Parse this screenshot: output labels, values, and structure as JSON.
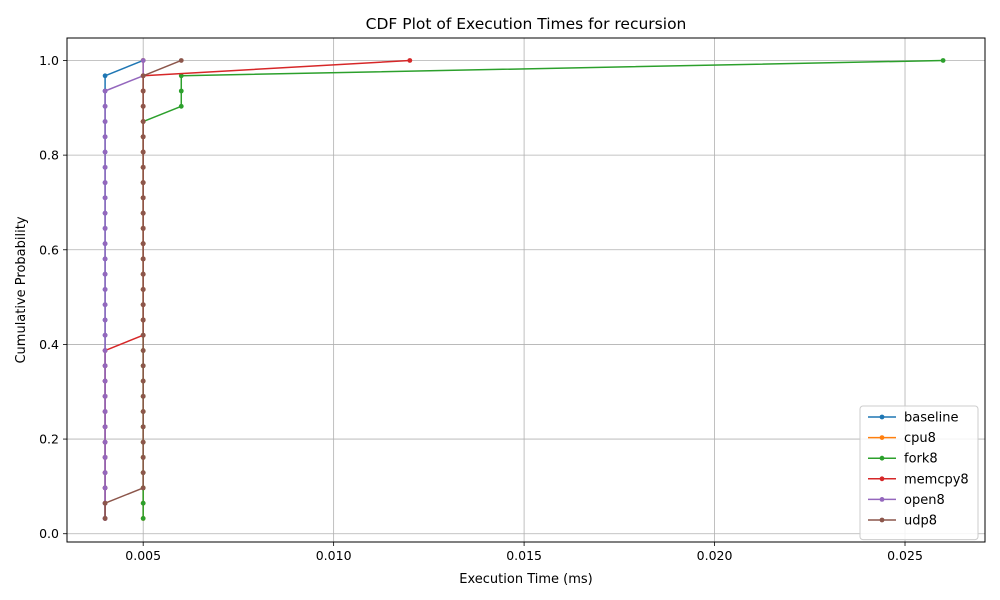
{
  "chart_data": {
    "type": "line",
    "title": "CDF Plot of Execution Times for recursion",
    "xlabel": "Execution Time (ms)",
    "ylabel": "Cumulative Probability",
    "xlim": [
      0.003,
      0.0271
    ],
    "ylim": [
      -0.0175,
      1.0475
    ],
    "x_ticks": [
      0.005,
      0.01,
      0.015,
      0.02,
      0.025
    ],
    "x_tick_labels": [
      "0.005",
      "0.010",
      "0.015",
      "0.020",
      "0.025"
    ],
    "y_ticks": [
      0.0,
      0.2,
      0.4,
      0.6,
      0.8,
      1.0
    ],
    "y_tick_labels": [
      "0.0",
      "0.2",
      "0.4",
      "0.6",
      "0.8",
      "1.0"
    ],
    "grid": true,
    "legend_position": "bottom-right",
    "series": [
      {
        "name": "baseline",
        "color": "#1f77b4",
        "points": [
          [
            0.004,
            0.0323
          ],
          [
            0.004,
            0.0645
          ],
          [
            0.004,
            0.0968
          ],
          [
            0.004,
            0.129
          ],
          [
            0.004,
            0.1613
          ],
          [
            0.004,
            0.1935
          ],
          [
            0.004,
            0.2258
          ],
          [
            0.004,
            0.2581
          ],
          [
            0.004,
            0.2903
          ],
          [
            0.004,
            0.3226
          ],
          [
            0.004,
            0.3548
          ],
          [
            0.004,
            0.3871
          ],
          [
            0.004,
            0.4194
          ],
          [
            0.004,
            0.4516
          ],
          [
            0.004,
            0.4839
          ],
          [
            0.004,
            0.5161
          ],
          [
            0.004,
            0.5484
          ],
          [
            0.004,
            0.5806
          ],
          [
            0.004,
            0.6129
          ],
          [
            0.004,
            0.6452
          ],
          [
            0.004,
            0.6774
          ],
          [
            0.004,
            0.7097
          ],
          [
            0.004,
            0.7419
          ],
          [
            0.004,
            0.7742
          ],
          [
            0.004,
            0.8065
          ],
          [
            0.004,
            0.8387
          ],
          [
            0.004,
            0.871
          ],
          [
            0.004,
            0.9032
          ],
          [
            0.004,
            0.9355
          ],
          [
            0.004,
            0.9677
          ],
          [
            0.005,
            1.0
          ]
        ]
      },
      {
        "name": "cpu8",
        "color": "#ff7f0e",
        "points": [
          [
            0.005,
            0.0323
          ],
          [
            0.005,
            0.0645
          ],
          [
            0.005,
            0.0968
          ],
          [
            0.005,
            0.129
          ],
          [
            0.005,
            0.1613
          ],
          [
            0.005,
            0.1935
          ],
          [
            0.005,
            0.2258
          ],
          [
            0.005,
            0.2581
          ],
          [
            0.005,
            0.2903
          ],
          [
            0.005,
            0.3226
          ],
          [
            0.005,
            0.3548
          ],
          [
            0.005,
            0.3871
          ],
          [
            0.005,
            0.4194
          ],
          [
            0.005,
            0.4516
          ],
          [
            0.005,
            0.4839
          ],
          [
            0.005,
            0.5161
          ],
          [
            0.005,
            0.5484
          ],
          [
            0.005,
            0.5806
          ],
          [
            0.005,
            0.6129
          ],
          [
            0.005,
            0.6452
          ],
          [
            0.005,
            0.6774
          ],
          [
            0.005,
            0.7097
          ],
          [
            0.005,
            0.7419
          ],
          [
            0.005,
            0.7742
          ],
          [
            0.005,
            0.8065
          ],
          [
            0.005,
            0.8387
          ],
          [
            0.005,
            0.871
          ],
          [
            0.005,
            0.9032
          ],
          [
            0.005,
            0.9355
          ],
          [
            0.005,
            0.9677
          ],
          [
            0.005,
            1.0
          ]
        ]
      },
      {
        "name": "fork8",
        "color": "#2ca02c",
        "points": [
          [
            0.005,
            0.0323
          ],
          [
            0.005,
            0.0645
          ],
          [
            0.005,
            0.0968
          ],
          [
            0.005,
            0.129
          ],
          [
            0.005,
            0.1613
          ],
          [
            0.005,
            0.1935
          ],
          [
            0.005,
            0.2258
          ],
          [
            0.005,
            0.2581
          ],
          [
            0.005,
            0.2903
          ],
          [
            0.005,
            0.3226
          ],
          [
            0.005,
            0.3548
          ],
          [
            0.005,
            0.3871
          ],
          [
            0.005,
            0.4194
          ],
          [
            0.005,
            0.4516
          ],
          [
            0.005,
            0.4839
          ],
          [
            0.005,
            0.5161
          ],
          [
            0.005,
            0.5484
          ],
          [
            0.005,
            0.5806
          ],
          [
            0.005,
            0.6129
          ],
          [
            0.005,
            0.6452
          ],
          [
            0.005,
            0.6774
          ],
          [
            0.005,
            0.7097
          ],
          [
            0.005,
            0.7419
          ],
          [
            0.005,
            0.7742
          ],
          [
            0.005,
            0.8065
          ],
          [
            0.005,
            0.8387
          ],
          [
            0.005,
            0.871
          ],
          [
            0.006,
            0.9032
          ],
          [
            0.006,
            0.9355
          ],
          [
            0.006,
            0.9677
          ],
          [
            0.026,
            1.0
          ]
        ]
      },
      {
        "name": "memcpy8",
        "color": "#d62728",
        "points": [
          [
            0.004,
            0.0323
          ],
          [
            0.004,
            0.0645
          ],
          [
            0.004,
            0.0968
          ],
          [
            0.004,
            0.129
          ],
          [
            0.004,
            0.1613
          ],
          [
            0.004,
            0.1935
          ],
          [
            0.004,
            0.2258
          ],
          [
            0.004,
            0.2581
          ],
          [
            0.004,
            0.2903
          ],
          [
            0.004,
            0.3226
          ],
          [
            0.004,
            0.3548
          ],
          [
            0.004,
            0.3871
          ],
          [
            0.005,
            0.4194
          ],
          [
            0.005,
            0.4516
          ],
          [
            0.005,
            0.4839
          ],
          [
            0.005,
            0.5161
          ],
          [
            0.005,
            0.5484
          ],
          [
            0.005,
            0.5806
          ],
          [
            0.005,
            0.6129
          ],
          [
            0.005,
            0.6452
          ],
          [
            0.005,
            0.6774
          ],
          [
            0.005,
            0.7097
          ],
          [
            0.005,
            0.7419
          ],
          [
            0.005,
            0.7742
          ],
          [
            0.005,
            0.8065
          ],
          [
            0.005,
            0.8387
          ],
          [
            0.005,
            0.871
          ],
          [
            0.005,
            0.9032
          ],
          [
            0.005,
            0.9355
          ],
          [
            0.005,
            0.9677
          ],
          [
            0.012,
            1.0
          ]
        ]
      },
      {
        "name": "open8",
        "color": "#9467bd",
        "points": [
          [
            0.004,
            0.0323
          ],
          [
            0.004,
            0.0645
          ],
          [
            0.004,
            0.0968
          ],
          [
            0.004,
            0.129
          ],
          [
            0.004,
            0.1613
          ],
          [
            0.004,
            0.1935
          ],
          [
            0.004,
            0.2258
          ],
          [
            0.004,
            0.2581
          ],
          [
            0.004,
            0.2903
          ],
          [
            0.004,
            0.3226
          ],
          [
            0.004,
            0.3548
          ],
          [
            0.004,
            0.3871
          ],
          [
            0.004,
            0.4194
          ],
          [
            0.004,
            0.4516
          ],
          [
            0.004,
            0.4839
          ],
          [
            0.004,
            0.5161
          ],
          [
            0.004,
            0.5484
          ],
          [
            0.004,
            0.5806
          ],
          [
            0.004,
            0.6129
          ],
          [
            0.004,
            0.6452
          ],
          [
            0.004,
            0.6774
          ],
          [
            0.004,
            0.7097
          ],
          [
            0.004,
            0.7419
          ],
          [
            0.004,
            0.7742
          ],
          [
            0.004,
            0.8065
          ],
          [
            0.004,
            0.8387
          ],
          [
            0.004,
            0.871
          ],
          [
            0.004,
            0.9032
          ],
          [
            0.004,
            0.9355
          ],
          [
            0.005,
            0.9677
          ],
          [
            0.005,
            1.0
          ]
        ]
      },
      {
        "name": "udp8",
        "color": "#8c564b",
        "points": [
          [
            0.004,
            0.0323
          ],
          [
            0.004,
            0.0645
          ],
          [
            0.005,
            0.0968
          ],
          [
            0.005,
            0.129
          ],
          [
            0.005,
            0.1613
          ],
          [
            0.005,
            0.1935
          ],
          [
            0.005,
            0.2258
          ],
          [
            0.005,
            0.2581
          ],
          [
            0.005,
            0.2903
          ],
          [
            0.005,
            0.3226
          ],
          [
            0.005,
            0.3548
          ],
          [
            0.005,
            0.3871
          ],
          [
            0.005,
            0.4194
          ],
          [
            0.005,
            0.4516
          ],
          [
            0.005,
            0.4839
          ],
          [
            0.005,
            0.5161
          ],
          [
            0.005,
            0.5484
          ],
          [
            0.005,
            0.5806
          ],
          [
            0.005,
            0.6129
          ],
          [
            0.005,
            0.6452
          ],
          [
            0.005,
            0.6774
          ],
          [
            0.005,
            0.7097
          ],
          [
            0.005,
            0.7419
          ],
          [
            0.005,
            0.7742
          ],
          [
            0.005,
            0.8065
          ],
          [
            0.005,
            0.8387
          ],
          [
            0.005,
            0.871
          ],
          [
            0.005,
            0.9032
          ],
          [
            0.005,
            0.9355
          ],
          [
            0.005,
            0.9677
          ],
          [
            0.006,
            1.0
          ]
        ]
      }
    ]
  }
}
